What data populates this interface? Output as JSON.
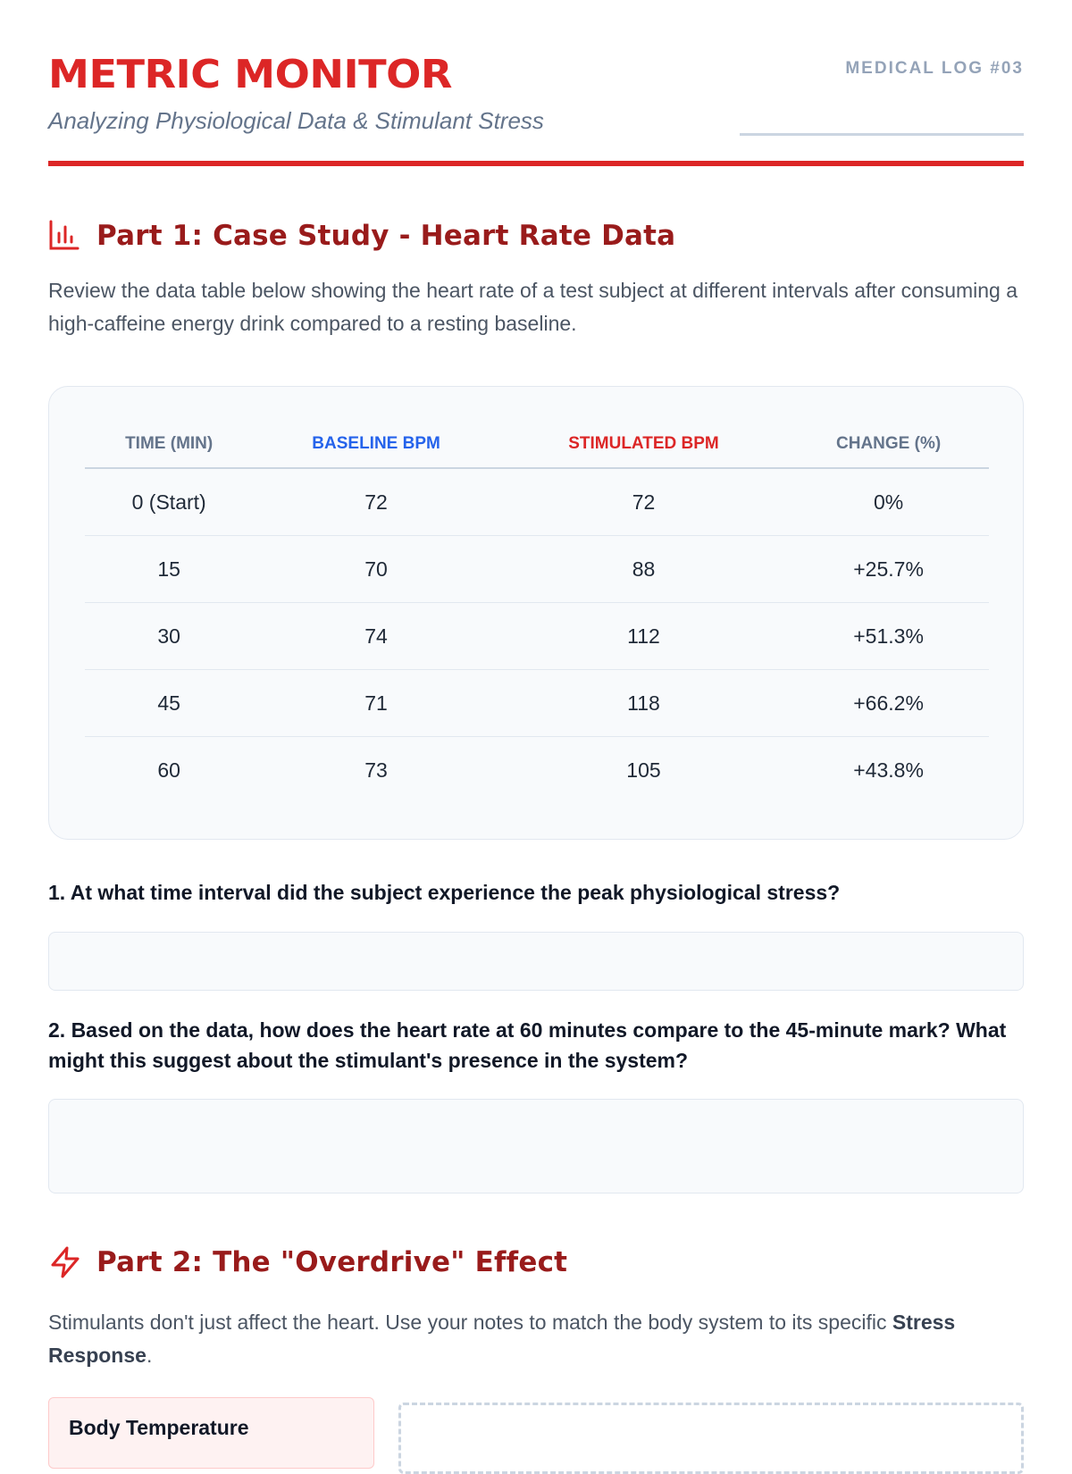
{
  "header": {
    "title": "METRIC MONITOR",
    "subtitle": "Analyzing Physiological Data & Stimulant Stress",
    "log_id": "MEDICAL LOG #03"
  },
  "part1": {
    "icon": "bar-chart-icon",
    "heading": "Part 1: Case Study - Heart Rate Data",
    "description": "Review the data table below showing the heart rate of a test subject at different intervals after consuming a high-caffeine energy drink compared to a resting baseline.",
    "table": {
      "headers": [
        "TIME (MIN)",
        "BASELINE BPM",
        "STIMULATED BPM",
        "CHANGE (%)"
      ],
      "rows": [
        [
          "0 (Start)",
          "72",
          "72",
          "0%"
        ],
        [
          "15",
          "70",
          "88",
          "+25.7%"
        ],
        [
          "30",
          "74",
          "112",
          "+51.3%"
        ],
        [
          "45",
          "71",
          "118",
          "+66.2%"
        ],
        [
          "60",
          "73",
          "105",
          "+43.8%"
        ]
      ]
    },
    "questions": [
      "1. At what time interval did the subject experience the peak physiological stress?",
      "2. Based on the data, how does the heart rate at 60 minutes compare to the 45-minute mark? What might this suggest about the stimulant's presence in the system?"
    ]
  },
  "part2": {
    "icon": "lightning-icon",
    "heading": "Part 2: The \"Overdrive\" Effect",
    "description_pre": "Stimulants don't just affect the heart. Use your notes to match the body system to its specific ",
    "description_bold": "Stress Response",
    "description_post": ".",
    "first_card": "Body Temperature"
  },
  "colors": {
    "accent": "#dc2626",
    "heading": "#991b1b",
    "baseline": "#2563eb",
    "muted": "#64748b"
  }
}
